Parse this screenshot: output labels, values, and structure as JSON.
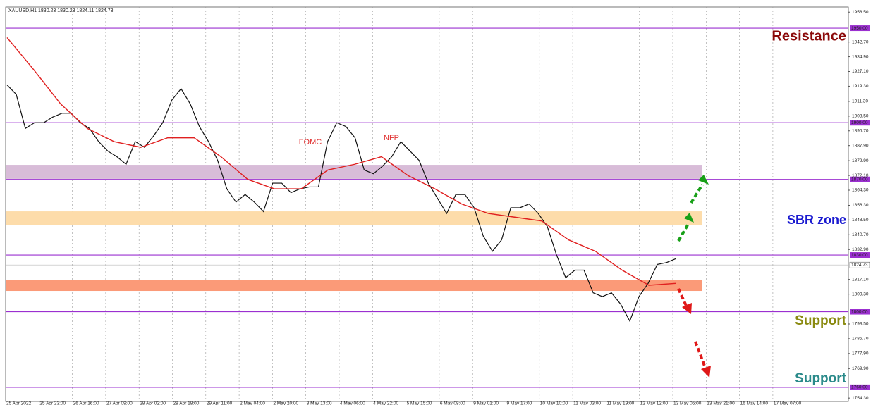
{
  "chart_data": {
    "type": "line",
    "title": "XAUUSD,H1  1830.23 1830.23 1824.11 1824.73",
    "ylim": [
      1752.5,
      1961.2
    ],
    "yticks": [
      {
        "value": 1958.5,
        "label": "1958.50"
      },
      {
        "value": 1942.7,
        "label": "1942.70"
      },
      {
        "value": 1934.9,
        "label": "1934.90"
      },
      {
        "value": 1927.1,
        "label": "1927.10"
      },
      {
        "value": 1919.3,
        "label": "1919.30"
      },
      {
        "value": 1911.3,
        "label": "1911.30"
      },
      {
        "value": 1903.5,
        "label": "1903.50"
      },
      {
        "value": 1895.7,
        "label": "1895.70"
      },
      {
        "value": 1887.9,
        "label": "1887.90"
      },
      {
        "value": 1879.9,
        "label": "1879.90"
      },
      {
        "value": 1872.1,
        "label": "1872.10"
      },
      {
        "value": 1864.3,
        "label": "1864.30"
      },
      {
        "value": 1856.3,
        "label": "1856.30"
      },
      {
        "value": 1848.5,
        "label": "1848.50"
      },
      {
        "value": 1840.7,
        "label": "1840.70"
      },
      {
        "value": 1832.9,
        "label": "1832.90"
      },
      {
        "value": 1817.1,
        "label": "1817.10"
      },
      {
        "value": 1809.3,
        "label": "1809.30"
      },
      {
        "value": 1793.5,
        "label": "1793.50"
      },
      {
        "value": 1785.7,
        "label": "1785.70"
      },
      {
        "value": 1777.9,
        "label": "1777.90"
      },
      {
        "value": 1769.9,
        "label": "1769.90"
      },
      {
        "value": 1754.3,
        "label": "1754.30"
      }
    ],
    "time_labels": [
      "25 Apr 2022",
      "25 Apr 23:00",
      "26 Apr 16:00",
      "27 Apr 09:00",
      "28 Apr 02:00",
      "28 Apr 18:00",
      "29 Apr 11:00",
      "2 May 04:00",
      "2 May 20:00",
      "3 May 13:00",
      "4 May 06:00",
      "4 May 22:00",
      "5 May 15:00",
      "6 May 08:00",
      "9 May 01:00",
      "9 May 17:00",
      "10 May 10:00",
      "11 May 03:00",
      "11 May 19:00",
      "12 May 12:00",
      "13 May 05:00",
      "13 May 21:00",
      "16 May 14:00",
      "17 May 07:00"
    ],
    "series": [
      {
        "color": "#111111",
        "values": [
          1920,
          1915,
          1897,
          1900,
          1900,
          1903,
          1905,
          1905,
          1900,
          1897,
          1890,
          1885,
          1882,
          1878,
          1890,
          1887,
          1893,
          1900,
          1912,
          1918,
          1910,
          1898,
          1890,
          1880,
          1865,
          1858,
          1862,
          1858,
          1853,
          1868,
          1868,
          1863,
          1865,
          1866,
          1866,
          1890,
          1900,
          1898,
          1892,
          1875,
          1873,
          1877,
          1882,
          1890,
          1885,
          1880,
          1868,
          1860,
          1852,
          1862,
          1862,
          1855,
          1840,
          1832,
          1838,
          1855,
          1855,
          1857,
          1852,
          1845,
          1830,
          1818,
          1822,
          1822,
          1810,
          1808,
          1810,
          1804,
          1795,
          1808,
          1815,
          1825,
          1826,
          1828
        ]
      },
      {
        "color": "#e02020",
        "values": [
          1945,
          1928,
          1910,
          1897,
          1890,
          1887,
          1892,
          1892,
          1882,
          1870,
          1865,
          1865,
          1875,
          1878,
          1882,
          1872,
          1865,
          1857,
          1852,
          1850,
          1848,
          1838,
          1832,
          1822,
          1814,
          1815
        ]
      }
    ],
    "levels": [
      {
        "value": 1950,
        "label": "1950.00"
      },
      {
        "value": 1900,
        "label": "1900.00"
      },
      {
        "value": 1870,
        "label": "1870.00"
      },
      {
        "value": 1830,
        "label": "1830.00"
      },
      {
        "value": 1800,
        "label": "1800.00"
      },
      {
        "value": 1760,
        "label": "1760.00"
      }
    ],
    "level_color": "#9b30d0",
    "zones": [
      {
        "range": [
          1870.3,
          1877.7
        ],
        "color": "#d8bcd8"
      },
      {
        "range": [
          1845.7,
          1853.1
        ],
        "color": "#fddcaa"
      },
      {
        "range": [
          1811.0,
          1816.6
        ],
        "color": "#fb9a78"
      }
    ],
    "current_price": {
      "value": 1824.73,
      "label": "1824.73"
    },
    "annotations": [
      {
        "text": "Resistance",
        "color": "#8b0a0a"
      },
      {
        "text": "SBR zone",
        "color": "#1a1ad0"
      },
      {
        "text": "Support",
        "color": "#8a8a10"
      },
      {
        "text": "Support",
        "color": "#2a8a8a"
      },
      {
        "text": "FOMC",
        "color": "#e03030"
      },
      {
        "text": "NFP",
        "color": "#e03030"
      }
    ]
  }
}
